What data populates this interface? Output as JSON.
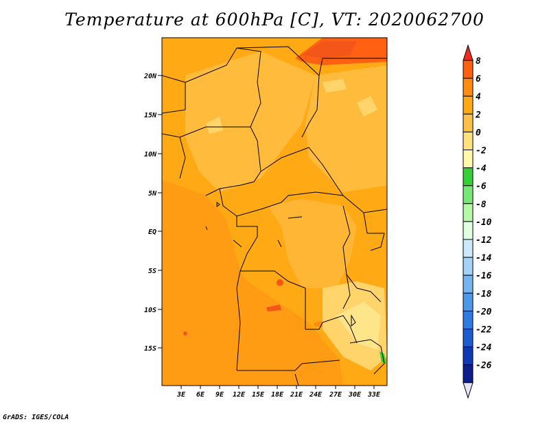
{
  "title": "Temperature at 600hPa [C], VT: 2020062700",
  "credit": "GrADS: IGES/COLA",
  "map": {
    "region": "Central Africa",
    "lat_ticks": [
      "20N",
      "15N",
      "10N",
      "5N",
      "EQ",
      "5S",
      "10S",
      "15S"
    ],
    "lon_ticks": [
      "3E",
      "6E",
      "9E",
      "12E",
      "15E",
      "18E",
      "21E",
      "24E",
      "27E",
      "30E",
      "33E"
    ],
    "lon_range": [
      0,
      35
    ],
    "lat_range": [
      -20,
      25
    ]
  },
  "colorbar": {
    "labels": [
      "8",
      "6",
      "4",
      "2",
      "0",
      "-2",
      "-4",
      "-6",
      "-8",
      "-10",
      "-12",
      "-14",
      "-16",
      "-18",
      "-20",
      "-22",
      "-24",
      "-26"
    ],
    "colors": [
      "#f02a1e",
      "#ff6012",
      "#ff8c12",
      "#ffa915",
      "#ffc04a",
      "#ffe27e",
      "#fffaaa",
      "#37cf37",
      "#77e777",
      "#b4f8a8",
      "#e0ffe0",
      "#cbe9fb",
      "#a5d2f7",
      "#75b5f1",
      "#4e98ea",
      "#2f7ae0",
      "#1c5ccf",
      "#0f38b5",
      "#0a1e8c",
      "#e6e6f7"
    ]
  }
}
